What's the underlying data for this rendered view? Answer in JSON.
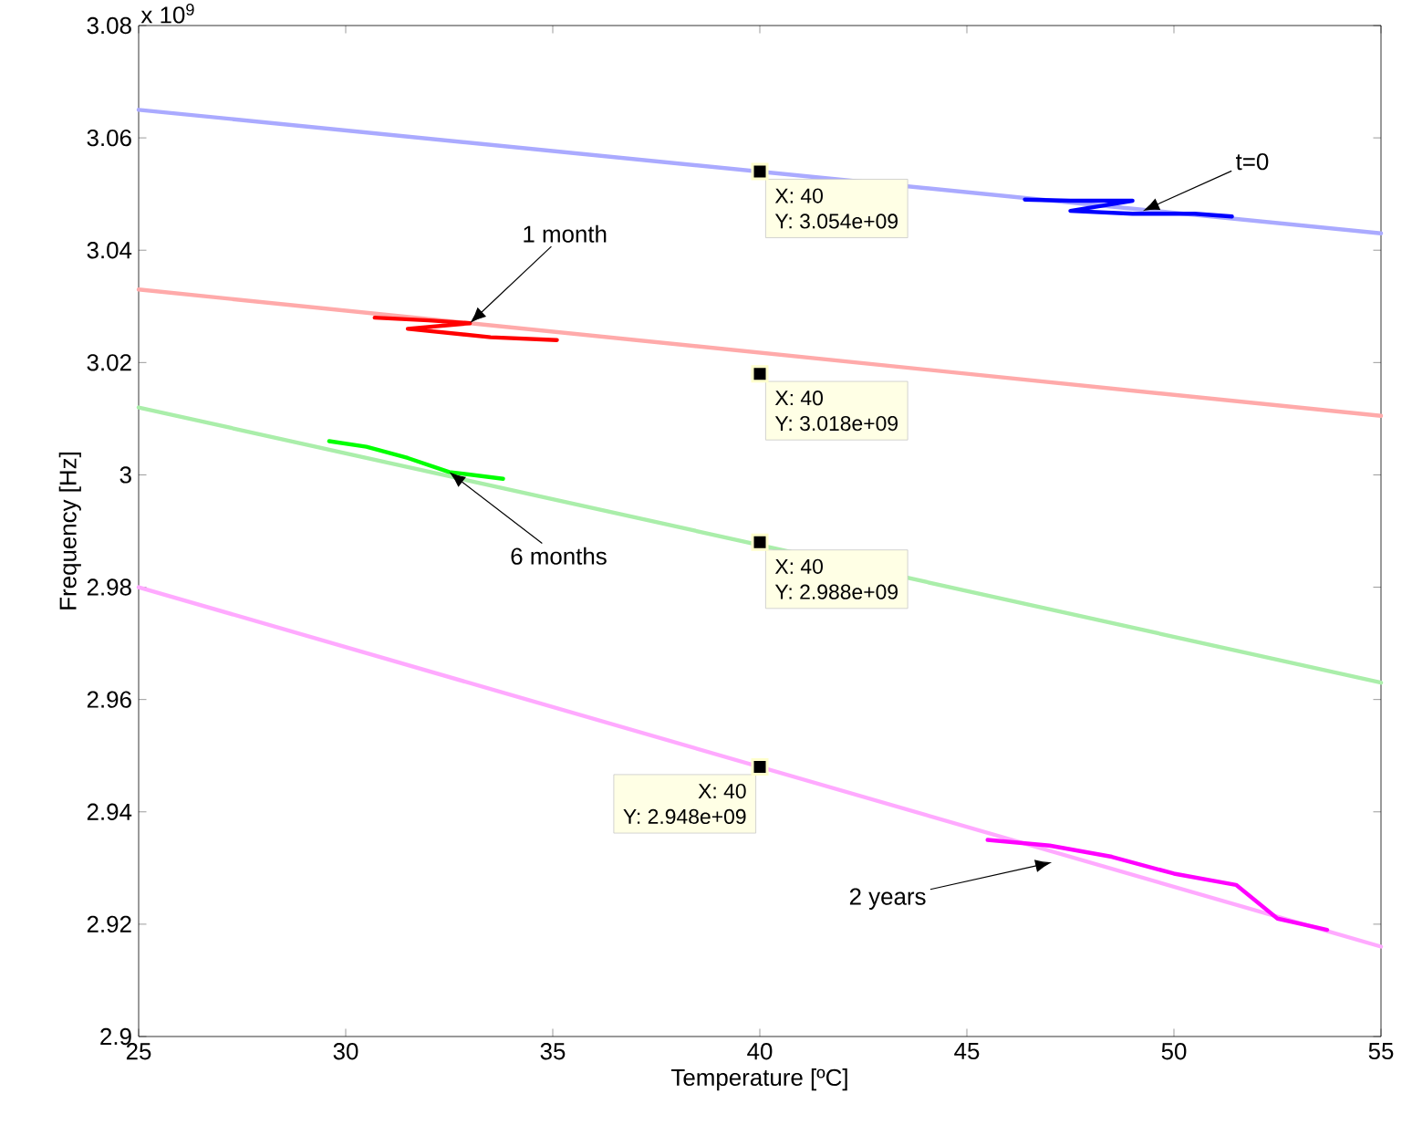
{
  "chart_data": {
    "type": "line",
    "xlabel": "Temperature [ºC]",
    "ylabel": "Frequency [Hz]",
    "xlim": [
      25,
      55
    ],
    "ylim": [
      2.9,
      3.08
    ],
    "xticks": [
      25,
      30,
      35,
      40,
      45,
      50,
      55
    ],
    "yticks": [
      2.9,
      2.92,
      2.94,
      2.96,
      2.98,
      3,
      3.02,
      3.04,
      3.06,
      3.08
    ],
    "series": [
      {
        "color": "#aaaaff",
        "x": [
          25,
          55
        ],
        "values": [
          3.065,
          3.043
        ]
      },
      {
        "color": "#ffaaaa",
        "x": [
          25,
          55
        ],
        "values": [
          3.033,
          3.0105
        ]
      },
      {
        "color": "#aaeeaa",
        "x": [
          25,
          55
        ],
        "values": [
          3.012,
          2.963
        ]
      },
      {
        "color": "#ffaaff",
        "x": [
          25,
          55
        ],
        "values": [
          2.98,
          2.916
        ]
      },
      {
        "color": "#0000ff",
        "x": [
          46.4,
          47.5,
          49,
          47.5,
          49,
          50.5,
          51.4
        ],
        "values": [
          3.049,
          3.0488,
          3.0488,
          3.047,
          3.0465,
          3.0465,
          3.046
        ]
      },
      {
        "color": "#ff0000",
        "x": [
          30.7,
          32,
          33,
          31.5,
          33.5,
          35.1
        ],
        "values": [
          3.028,
          3.0275,
          3.027,
          3.026,
          3.0245,
          3.024
        ]
      },
      {
        "color": "#00ff00",
        "x": [
          29.6,
          30.5,
          31.5,
          32.5,
          33.8
        ],
        "values": [
          3.006,
          3.005,
          3.003,
          3.0005,
          2.9993
        ]
      },
      {
        "color": "#ff00ff",
        "x": [
          45.5,
          47,
          48.5,
          50,
          51.5,
          52.5,
          53.7
        ],
        "values": [
          2.935,
          2.934,
          2.932,
          2.929,
          2.927,
          2.921,
          2.919
        ]
      },
      {
        "type": "scatter",
        "marker": "square",
        "color": "#000000",
        "x": [
          40,
          40,
          40,
          40
        ],
        "values": [
          3.054,
          3.018,
          2.988,
          2.948
        ]
      }
    ],
    "annotations": [
      "x 10$^{9}$",
      {
        "text": "t=0",
        "x": 49.25,
        "y": 3.047
      },
      {
        "text": "1 month",
        "x": 33,
        "y": 3.027
      },
      {
        "text": "6 months",
        "x": 32.5,
        "y": 3.0005
      },
      {
        "text": "2 years",
        "x": 47.05,
        "y": 2.931
      },
      {
        "text": "X: 40",
        "x": 40,
        "y": 3.054
      },
      {
        "text": "Y: 3.054e+09",
        "x": 40,
        "y": 3.054
      },
      {
        "text": "X: 40",
        "x": 40,
        "y": 3.018
      },
      {
        "text": "Y: 3.018e+09",
        "x": 40,
        "y": 3.018
      },
      {
        "text": "X: 40",
        "x": 40,
        "y": 2.988
      },
      {
        "text": "Y: 2.988e+09",
        "x": 40,
        "y": 2.988
      },
      {
        "text": "X: 40",
        "x": 40,
        "y": 2.948
      },
      {
        "text": "Y: 2.948e+09",
        "x": 40,
        "y": 2.948
      }
    ]
  }
}
